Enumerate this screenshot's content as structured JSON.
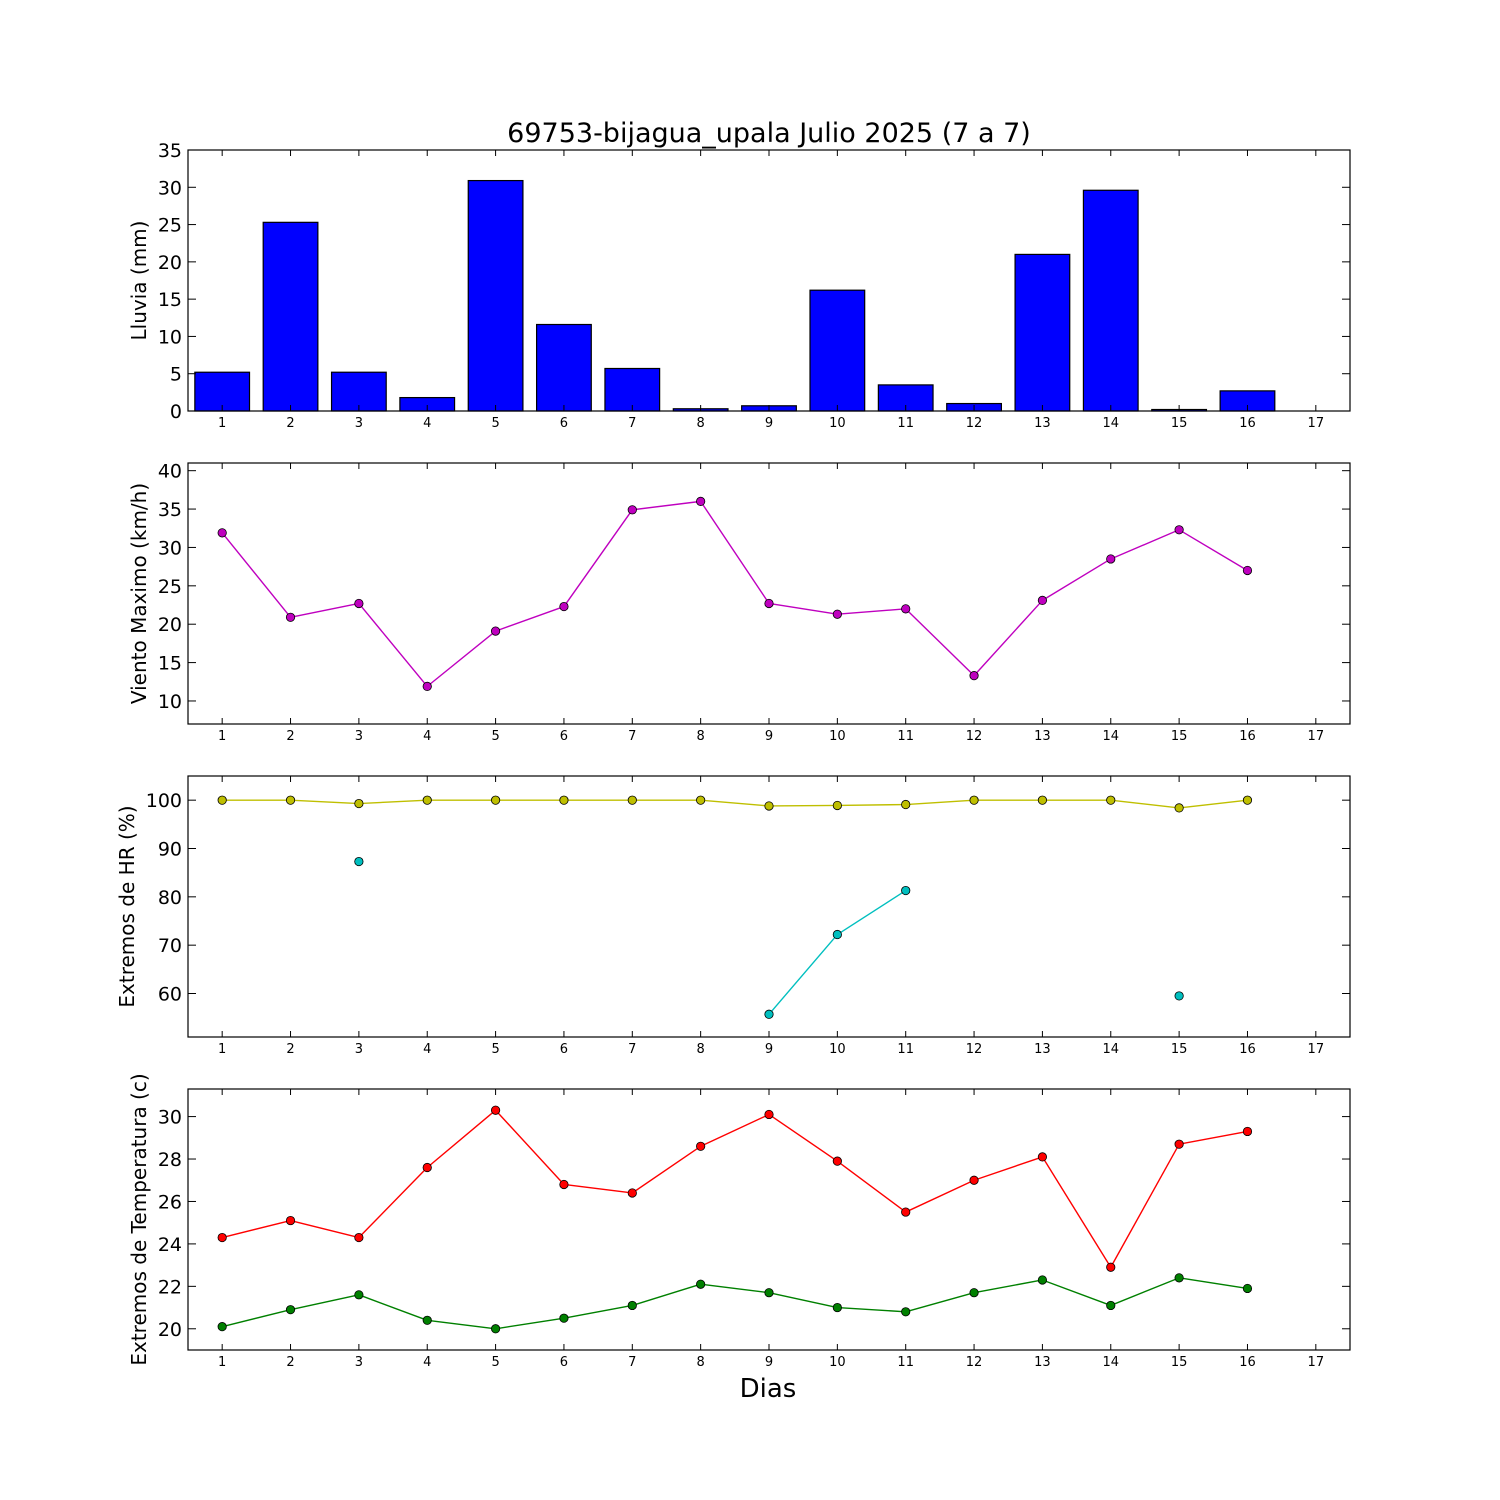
{
  "figure": {
    "title": "69753-bijagua_upala Julio 2025  (7 a 7)",
    "xlabel": "Dias"
  },
  "chart_data": [
    {
      "type": "bar",
      "ylabel": "Lluvia (mm)",
      "x": [
        1,
        2,
        3,
        4,
        5,
        6,
        7,
        8,
        9,
        10,
        11,
        12,
        13,
        14,
        15,
        16
      ],
      "xticks": [
        1,
        2,
        3,
        4,
        5,
        6,
        7,
        8,
        9,
        10,
        11,
        12,
        13,
        14,
        15,
        16,
        17
      ],
      "values": [
        5.2,
        25.3,
        5.2,
        1.8,
        30.9,
        11.6,
        5.7,
        0.3,
        0.7,
        16.2,
        3.5,
        1.0,
        21.0,
        29.6,
        0.2,
        2.7
      ],
      "xlim": [
        0.5,
        17.5
      ],
      "ylim": [
        0,
        35
      ],
      "yticks": [
        0,
        5,
        10,
        15,
        20,
        25,
        30,
        35
      ],
      "color": "#0000ff"
    },
    {
      "type": "line",
      "ylabel": "Viento Maximo (km/h)",
      "x": [
        1,
        2,
        3,
        4,
        5,
        6,
        7,
        8,
        9,
        10,
        11,
        12,
        13,
        14,
        15,
        16
      ],
      "xticks": [
        1,
        2,
        3,
        4,
        5,
        6,
        7,
        8,
        9,
        10,
        11,
        12,
        13,
        14,
        15,
        16,
        17
      ],
      "xlim": [
        0.5,
        17.5
      ],
      "ylim": [
        7,
        41
      ],
      "yticks": [
        10,
        15,
        20,
        25,
        30,
        35,
        40
      ],
      "series": [
        {
          "values": [
            31.9,
            20.9,
            22.7,
            11.9,
            19.1,
            22.3,
            34.9,
            36.0,
            22.7,
            21.3,
            22.0,
            13.3,
            23.1,
            28.5,
            32.3,
            27.0
          ],
          "color": "#bf00bf"
        }
      ]
    },
    {
      "type": "line",
      "ylabel": "Extremos de HR (%)",
      "x": [
        1,
        2,
        3,
        4,
        5,
        6,
        7,
        8,
        9,
        10,
        11,
        12,
        13,
        14,
        15,
        16
      ],
      "xticks": [
        1,
        2,
        3,
        4,
        5,
        6,
        7,
        8,
        9,
        10,
        11,
        12,
        13,
        14,
        15,
        16,
        17
      ],
      "xlim": [
        0.5,
        17.5
      ],
      "ylim": [
        51,
        105
      ],
      "yticks": [
        60,
        70,
        80,
        90,
        100
      ],
      "series": [
        {
          "values": [
            100,
            100,
            99.3,
            100,
            100,
            100,
            100,
            100,
            98.8,
            98.9,
            99.1,
            100,
            100,
            100,
            98.4,
            100
          ],
          "color": "#bfbf00"
        },
        {
          "values": [
            null,
            null,
            87.3,
            null,
            null,
            null,
            null,
            null,
            55.7,
            72.2,
            81.3,
            null,
            null,
            null,
            59.5,
            null
          ],
          "color": "#00bfbf"
        }
      ]
    },
    {
      "type": "line",
      "ylabel": "Extremos de Temperatura (c)",
      "x": [
        1,
        2,
        3,
        4,
        5,
        6,
        7,
        8,
        9,
        10,
        11,
        12,
        13,
        14,
        15,
        16
      ],
      "xticks": [
        1,
        2,
        3,
        4,
        5,
        6,
        7,
        8,
        9,
        10,
        11,
        12,
        13,
        14,
        15,
        16,
        17
      ],
      "xlim": [
        0.5,
        17.5
      ],
      "ylim": [
        19,
        31.3
      ],
      "yticks": [
        20,
        22,
        24,
        26,
        28,
        30
      ],
      "series": [
        {
          "values": [
            24.3,
            25.1,
            24.3,
            27.6,
            30.3,
            26.8,
            26.4,
            28.6,
            30.1,
            27.9,
            25.5,
            27.0,
            28.1,
            22.9,
            28.7,
            29.3
          ],
          "color": "#ff0000"
        },
        {
          "values": [
            20.1,
            20.9,
            21.6,
            20.4,
            20.0,
            20.5,
            21.1,
            22.1,
            21.7,
            21.0,
            20.8,
            21.7,
            22.3,
            21.1,
            22.4,
            21.9
          ],
          "color": "#008000"
        }
      ]
    }
  ]
}
